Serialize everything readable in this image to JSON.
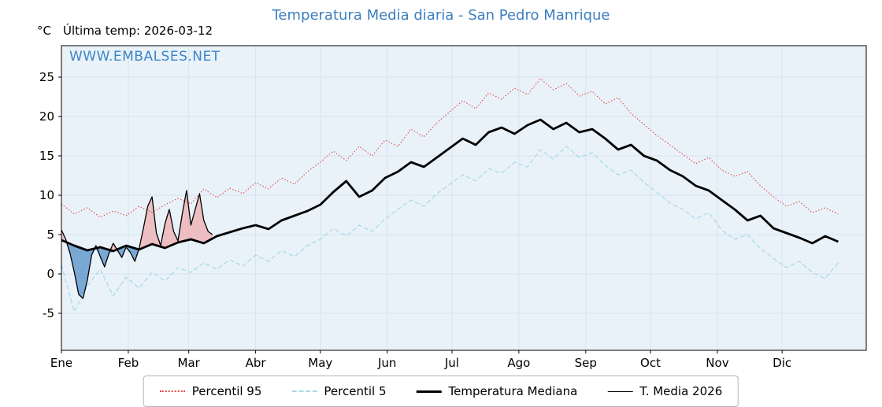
{
  "page": {
    "title": "Temperatura Media diaria - San Pedro Manrique",
    "y_unit_label": "°C",
    "last_temp_label": "Última temp: 2026-03-12",
    "watermark": "WWW.EMBALSES.NET"
  },
  "colors": {
    "title": "#3d7ebf",
    "watermark": "#3c85c6",
    "p95": "#e04a4a",
    "p5": "#a6d9ea",
    "median": "#000000",
    "t2026": "#000000",
    "fill_above": "#ef9d9d",
    "fill_below": "#3d7fc1",
    "plot_bg": "#eaf2f9",
    "grid": "#d6e3ef",
    "frame": "#000000"
  },
  "chart_data": {
    "type": "line",
    "title": "Temperatura Media diaria - San Pedro Manrique",
    "xlabel": "",
    "ylabel": "°C",
    "x_tick_labels": [
      "Ene",
      "Feb",
      "Mar",
      "Abr",
      "May",
      "Jun",
      "Jul",
      "Ago",
      "Sep",
      "Oct",
      "Nov",
      "Dic"
    ],
    "x_tick_days": [
      0,
      31,
      59,
      90,
      120,
      151,
      181,
      212,
      243,
      273,
      304,
      334
    ],
    "y_ticks": [
      -5,
      0,
      5,
      10,
      15,
      20,
      25
    ],
    "y_range": [
      -9.7,
      29.0
    ],
    "x_range_days": [
      0,
      373
    ],
    "grid": true,
    "legend_position": "bottom",
    "days": [
      0,
      6,
      12,
      18,
      24,
      30,
      36,
      42,
      48,
      54,
      60,
      66,
      72,
      78,
      84,
      90,
      96,
      102,
      108,
      114,
      120,
      126,
      132,
      138,
      144,
      150,
      156,
      162,
      168,
      174,
      180,
      186,
      192,
      198,
      204,
      210,
      216,
      222,
      228,
      234,
      240,
      246,
      252,
      258,
      264,
      270,
      276,
      282,
      288,
      294,
      300,
      306,
      312,
      318,
      324,
      330,
      336,
      342,
      348,
      354,
      360
    ],
    "series": [
      {
        "name": "Percentil 95",
        "style": "dotted",
        "color_key": "p95",
        "values": [
          8.9,
          7.6,
          8.4,
          7.2,
          8.0,
          7.4,
          8.6,
          7.8,
          8.8,
          9.6,
          8.9,
          10.8,
          9.7,
          10.9,
          10.2,
          11.6,
          10.8,
          12.2,
          11.4,
          13.0,
          14.2,
          15.6,
          14.4,
          16.2,
          15.0,
          17.0,
          16.2,
          18.4,
          17.4,
          19.2,
          20.6,
          22.0,
          21.0,
          23.0,
          22.2,
          23.6,
          22.8,
          24.8,
          23.4,
          24.2,
          22.6,
          23.2,
          21.6,
          22.4,
          20.4,
          19.0,
          17.6,
          16.4,
          15.2,
          14.0,
          14.8,
          13.2,
          12.4,
          13.0,
          11.2,
          9.8,
          8.6,
          9.2,
          7.8,
          8.4,
          7.6
        ]
      },
      {
        "name": "Percentil 5",
        "style": "dashed",
        "color_key": "p5",
        "values": [
          1.2,
          -4.8,
          -1.5,
          0.6,
          -2.8,
          -0.4,
          -1.8,
          0.2,
          -0.9,
          0.8,
          0.2,
          1.4,
          0.6,
          1.8,
          1.0,
          2.4,
          1.6,
          3.0,
          2.2,
          3.6,
          4.4,
          5.8,
          4.8,
          6.2,
          5.4,
          7.0,
          8.2,
          9.4,
          8.6,
          10.2,
          11.4,
          12.6,
          11.8,
          13.4,
          12.8,
          14.2,
          13.6,
          15.8,
          14.6,
          16.2,
          14.8,
          15.4,
          13.8,
          12.6,
          13.2,
          11.6,
          10.4,
          9.0,
          8.2,
          7.0,
          7.8,
          5.6,
          4.4,
          5.0,
          3.2,
          2.0,
          0.8,
          1.6,
          0.2,
          -0.6,
          1.4
        ]
      },
      {
        "name": "Temperatura Mediana",
        "style": "thick",
        "color_key": "median",
        "values": [
          4.3,
          3.6,
          3.0,
          3.4,
          2.9,
          3.6,
          3.1,
          3.8,
          3.3,
          4.0,
          4.4,
          3.9,
          4.8,
          5.3,
          5.8,
          6.2,
          5.7,
          6.8,
          7.4,
          8.0,
          8.8,
          10.4,
          11.8,
          9.8,
          10.6,
          12.2,
          13.0,
          14.2,
          13.6,
          14.8,
          16.0,
          17.2,
          16.4,
          18.0,
          18.6,
          17.8,
          18.9,
          19.6,
          18.4,
          19.2,
          18.0,
          18.4,
          17.2,
          15.8,
          16.4,
          15.0,
          14.4,
          13.2,
          12.4,
          11.2,
          10.6,
          9.4,
          8.2,
          6.8,
          7.4,
          5.8,
          5.2,
          4.6,
          3.9,
          4.8,
          4.1
        ]
      }
    ],
    "t2026": {
      "name": "T. Media 2026",
      "style": "thin",
      "color_key": "t2026",
      "days": [
        0,
        2,
        4,
        6,
        8,
        10,
        12,
        14,
        16,
        18,
        20,
        22,
        24,
        26,
        28,
        30,
        32,
        34,
        36,
        38,
        40,
        42,
        44,
        46,
        48,
        50,
        52,
        54,
        56,
        58,
        60,
        62,
        64,
        66,
        68,
        70
      ],
      "values": [
        5.6,
        4.4,
        2.6,
        0.2,
        -2.6,
        -3.1,
        -0.8,
        2.4,
        3.6,
        2.2,
        0.9,
        2.6,
        3.9,
        3.0,
        2.1,
        3.4,
        2.7,
        1.6,
        3.2,
        5.8,
        8.6,
        9.8,
        5.2,
        3.6,
        6.4,
        8.2,
        5.4,
        4.2,
        7.6,
        10.6,
        6.2,
        8.2,
        10.2,
        6.8,
        5.4,
        5.0
      ]
    },
    "legend": [
      {
        "label": "Percentil 95",
        "style": "dotted",
        "color_key": "p95"
      },
      {
        "label": "Percentil 5",
        "style": "dashed",
        "color_key": "p5"
      },
      {
        "label": "Temperatura Mediana",
        "style": "thick",
        "color_key": "median"
      },
      {
        "label": "T. Media 2026",
        "style": "thin",
        "color_key": "t2026"
      }
    ]
  }
}
